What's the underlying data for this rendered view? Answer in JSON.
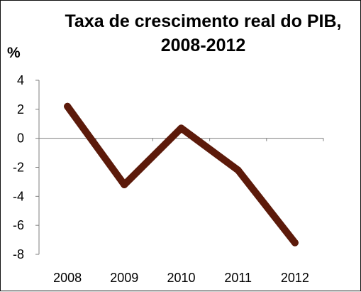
{
  "chart_data": {
    "type": "line",
    "title": "Taxa de crescimento real do PIB, 2008-2012",
    "ylabel": "%",
    "xlabel": "",
    "categories": [
      "2008",
      "2009",
      "2010",
      "2011",
      "2012"
    ],
    "series": [
      {
        "values": [
          2.2,
          -3.2,
          0.7,
          -2.2,
          -7.2
        ],
        "color": "#5c1a0a"
      }
    ],
    "ylim": [
      -8,
      4
    ],
    "yticks": [
      "4",
      "2",
      "0",
      "-2",
      "-4",
      "-6",
      "-8"
    ],
    "grid": false,
    "legend": "none"
  }
}
